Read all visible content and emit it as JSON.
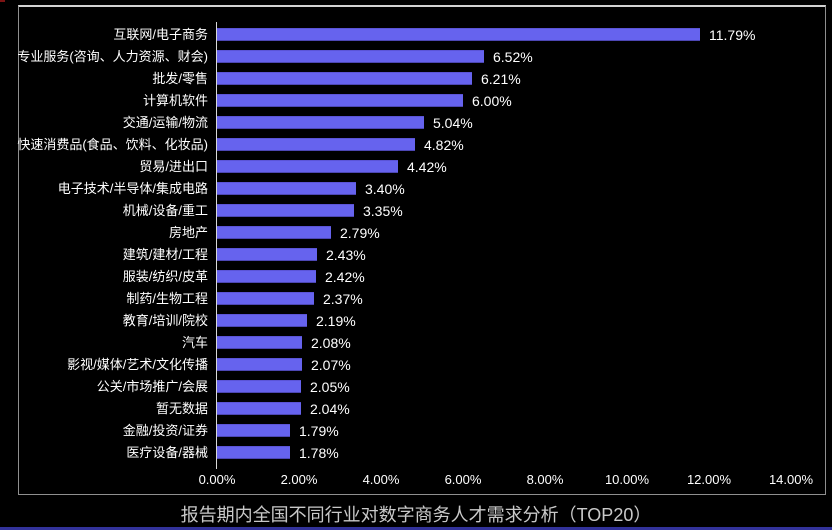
{
  "title": "报告期内全国不同行业对数字商务人才需求分析（TOP20）",
  "colors": {
    "background": "#000000",
    "bar_fill": "#6663ee",
    "text": "#ffffff",
    "title_text": "#c9c9c9",
    "frame_border": "#8f8f8f",
    "bottom_strip": "#32329a"
  },
  "chart_data": {
    "type": "bar",
    "orientation": "horizontal",
    "title": "报告期内全国不同行业对数字商务人才需求分析（TOP20）",
    "xlabel": "",
    "ylabel": "",
    "xlim": [
      0,
      14
    ],
    "grid": false,
    "legend": false,
    "categories": [
      "互联网/电子商务",
      "专业服务(咨询、人力资源、财会)",
      "批发/零售",
      "计算机软件",
      "交通/运输/物流",
      "快速消费品(食品、饮料、化妆品)",
      "贸易/进出口",
      "电子技术/半导体/集成电路",
      "机械/设备/重工",
      "房地产",
      "建筑/建材/工程",
      "服装/纺织/皮革",
      "制药/生物工程",
      "教育/培训/院校",
      "汽车",
      "影视/媒体/艺术/文化传播",
      "公关/市场推广/会展",
      "暂无数据",
      "金融/投资/证券",
      "医疗设备/器械"
    ],
    "values": [
      11.79,
      6.52,
      6.21,
      6.0,
      5.04,
      4.82,
      4.42,
      3.4,
      3.35,
      2.79,
      2.43,
      2.42,
      2.37,
      2.19,
      2.08,
      2.07,
      2.05,
      2.04,
      1.79,
      1.78
    ],
    "value_labels": [
      "11.79%",
      "6.52%",
      "6.21%",
      "6.00%",
      "5.04%",
      "4.82%",
      "4.42%",
      "3.40%",
      "3.35%",
      "2.79%",
      "2.43%",
      "2.42%",
      "2.37%",
      "2.19%",
      "2.08%",
      "2.07%",
      "2.05%",
      "2.04%",
      "1.79%",
      "1.78%"
    ],
    "x_ticks": [
      "0.00%",
      "2.00%",
      "4.00%",
      "6.00%",
      "8.00%",
      "10.00%",
      "12.00%",
      "14.00%"
    ]
  }
}
